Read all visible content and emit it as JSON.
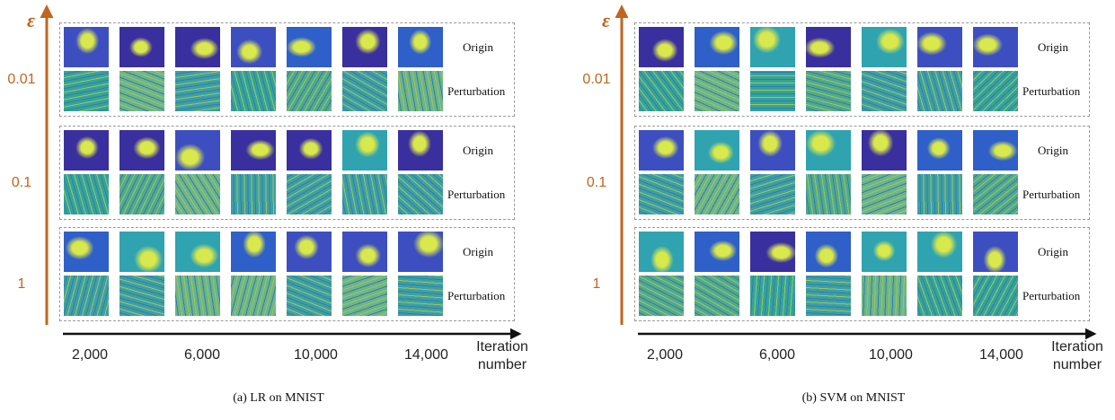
{
  "panels": [
    {
      "caption": "(a)  LR on MNIST",
      "axis_symbol": "ε",
      "epsilons": [
        "0.01",
        "0.1",
        "1"
      ],
      "row_labels": [
        "Origin",
        "Perturbation"
      ],
      "x_labels": [
        "2,000",
        "6,000",
        "10,000",
        "14,000"
      ],
      "x_axis_label": "Iteration number"
    },
    {
      "caption": "(b)  SVM on MNIST",
      "axis_symbol": "ε",
      "epsilons": [
        "0.01",
        "0.1",
        "1"
      ],
      "row_labels": [
        "Origin",
        "Perturbation"
      ],
      "x_labels": [
        "2,000",
        "6,000",
        "10,000",
        "14,000"
      ],
      "x_axis_label": "Iteration number"
    }
  ]
}
